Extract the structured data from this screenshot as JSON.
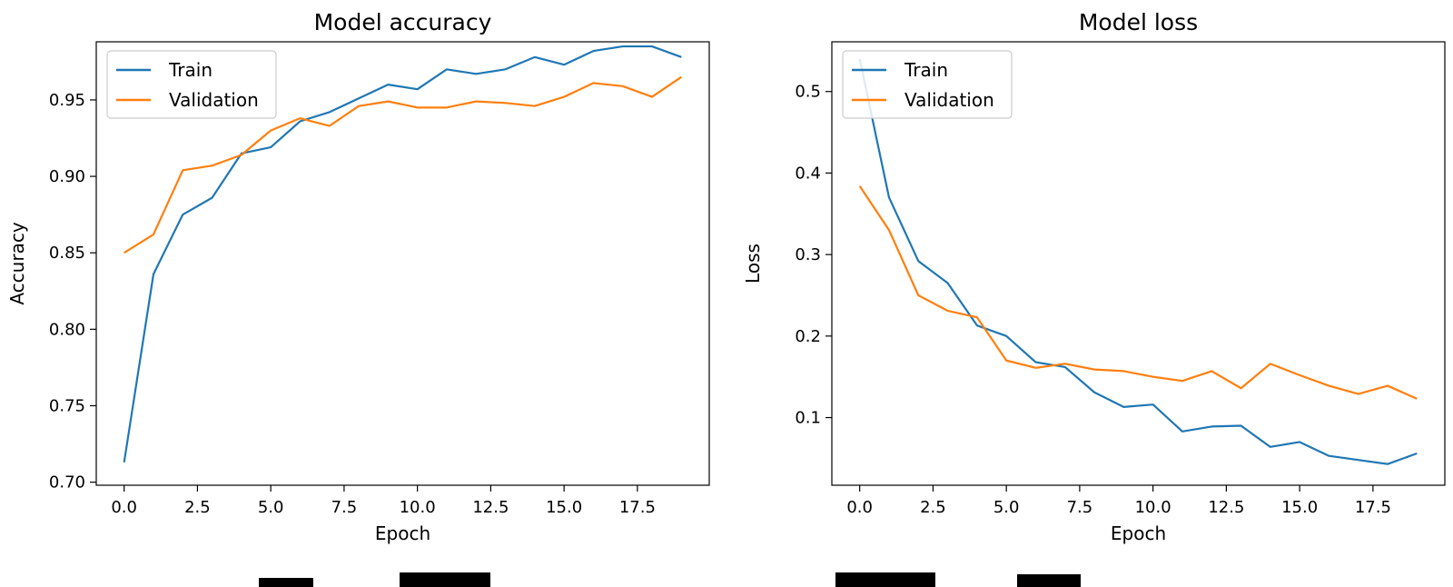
{
  "chart_data": [
    {
      "type": "line",
      "title": "Model accuracy",
      "xlabel": "Epoch",
      "ylabel": "Accuracy",
      "xlim": [
        -0.95,
        19.95
      ],
      "ylim": [
        0.698,
        0.988
      ],
      "xticks": [
        0.0,
        2.5,
        5.0,
        7.5,
        10.0,
        12.5,
        15.0,
        17.5
      ],
      "xtick_labels": [
        "0.0",
        "2.5",
        "5.0",
        "7.5",
        "10.0",
        "12.5",
        "15.0",
        "17.5"
      ],
      "yticks": [
        0.7,
        0.75,
        0.8,
        0.85,
        0.9,
        0.95
      ],
      "ytick_labels": [
        "0.70",
        "0.75",
        "0.80",
        "0.85",
        "0.90",
        "0.95"
      ],
      "grid": false,
      "legend_position": "top-left",
      "x": [
        0,
        1,
        2,
        3,
        4,
        5,
        6,
        7,
        8,
        9,
        10,
        11,
        12,
        13,
        14,
        15,
        16,
        17,
        18,
        19
      ],
      "series": [
        {
          "name": "Train",
          "color": "#1f77b4",
          "values": [
            0.713,
            0.836,
            0.875,
            0.886,
            0.915,
            0.919,
            0.936,
            0.942,
            0.951,
            0.96,
            0.957,
            0.97,
            0.967,
            0.97,
            0.978,
            0.973,
            0.982,
            0.985,
            0.985,
            0.978
          ]
        },
        {
          "name": "Validation",
          "color": "#ff7f0e",
          "values": [
            0.85,
            0.862,
            0.904,
            0.907,
            0.914,
            0.93,
            0.938,
            0.933,
            0.946,
            0.949,
            0.945,
            0.945,
            0.949,
            0.948,
            0.946,
            0.952,
            0.961,
            0.959,
            0.952,
            0.965
          ]
        }
      ]
    },
    {
      "type": "line",
      "title": "Model loss",
      "xlabel": "Epoch",
      "ylabel": "Loss",
      "xlim": [
        -0.95,
        19.95
      ],
      "ylim": [
        0.017,
        0.561
      ],
      "xticks": [
        0.0,
        2.5,
        5.0,
        7.5,
        10.0,
        12.5,
        15.0,
        17.5
      ],
      "xtick_labels": [
        "0.0",
        "2.5",
        "5.0",
        "7.5",
        "10.0",
        "12.5",
        "15.0",
        "17.5"
      ],
      "yticks": [
        0.1,
        0.2,
        0.3,
        0.4,
        0.5
      ],
      "ytick_labels": [
        "0.1",
        "0.2",
        "0.3",
        "0.4",
        "0.5"
      ],
      "grid": false,
      "legend_position": "top-left",
      "x": [
        0,
        1,
        2,
        3,
        4,
        5,
        6,
        7,
        8,
        9,
        10,
        11,
        12,
        13,
        14,
        15,
        16,
        17,
        18,
        19
      ],
      "series": [
        {
          "name": "Train",
          "color": "#1f77b4",
          "values": [
            0.54,
            0.37,
            0.292,
            0.265,
            0.213,
            0.2,
            0.168,
            0.162,
            0.131,
            0.113,
            0.116,
            0.083,
            0.089,
            0.09,
            0.064,
            0.07,
            0.053,
            0.048,
            0.043,
            0.056
          ]
        },
        {
          "name": "Validation",
          "color": "#ff7f0e",
          "values": [
            0.384,
            0.33,
            0.25,
            0.231,
            0.223,
            0.17,
            0.161,
            0.166,
            0.159,
            0.157,
            0.15,
            0.145,
            0.157,
            0.136,
            0.166,
            0.152,
            0.139,
            0.129,
            0.139,
            0.123
          ]
        }
      ]
    }
  ]
}
